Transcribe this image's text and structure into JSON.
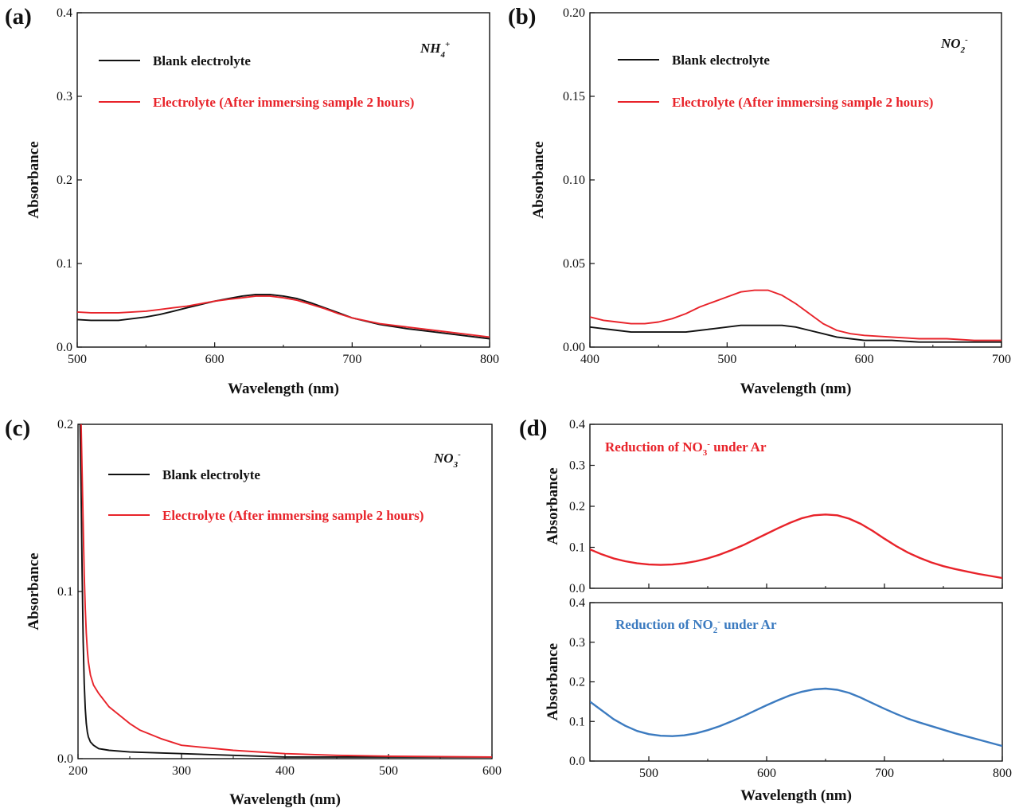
{
  "colors": {
    "black": "#111111",
    "red": "#e8232a",
    "blue": "#3c7bc0"
  },
  "chart_data": [
    {
      "id": "a",
      "type": "line",
      "panel_label": "(a)",
      "xlabel": "Wavelength (nm)",
      "ylabel": "Absorbance",
      "xlim": [
        500,
        800
      ],
      "ylim": [
        0,
        0.4
      ],
      "xticks": [
        500,
        600,
        700,
        800
      ],
      "xtick_labels": [
        "500",
        "600",
        "700",
        "800"
      ],
      "yticks": [
        0,
        0.1,
        0.2,
        0.3,
        0.4
      ],
      "ytick_labels": [
        "0.0",
        "0.1",
        "0.2",
        "0.3",
        "0.4"
      ],
      "annotation": {
        "base": "NH",
        "sub": "4",
        "sup": "+"
      },
      "series": [
        {
          "name": "Blank electrolyte",
          "color": "#111111",
          "x": [
            500,
            510,
            520,
            530,
            540,
            550,
            560,
            570,
            580,
            590,
            600,
            610,
            620,
            630,
            640,
            650,
            660,
            670,
            680,
            690,
            700,
            720,
            740,
            760,
            780,
            800
          ],
          "y": [
            0.033,
            0.032,
            0.032,
            0.032,
            0.034,
            0.036,
            0.039,
            0.043,
            0.047,
            0.051,
            0.055,
            0.058,
            0.061,
            0.063,
            0.063,
            0.061,
            0.058,
            0.053,
            0.047,
            0.041,
            0.035,
            0.027,
            0.022,
            0.018,
            0.014,
            0.01
          ]
        },
        {
          "name": "Electrolyte (After immersing sample 2 hours)",
          "color": "#e8232a",
          "x": [
            500,
            510,
            520,
            530,
            540,
            550,
            560,
            570,
            580,
            590,
            600,
            610,
            620,
            630,
            640,
            650,
            660,
            670,
            680,
            690,
            700,
            720,
            740,
            760,
            780,
            800
          ],
          "y": [
            0.042,
            0.041,
            0.041,
            0.041,
            0.042,
            0.043,
            0.045,
            0.047,
            0.049,
            0.052,
            0.055,
            0.057,
            0.059,
            0.061,
            0.061,
            0.059,
            0.056,
            0.051,
            0.046,
            0.04,
            0.035,
            0.028,
            0.024,
            0.02,
            0.016,
            0.012
          ]
        }
      ]
    },
    {
      "id": "b",
      "type": "line",
      "panel_label": "(b)",
      "xlabel": "Wavelength (nm)",
      "ylabel": "Absorbance",
      "xlim": [
        400,
        700
      ],
      "ylim": [
        0,
        0.2
      ],
      "xticks": [
        400,
        500,
        600,
        700
      ],
      "xtick_labels": [
        "400",
        "500",
        "600",
        "700"
      ],
      "yticks": [
        0,
        0.05,
        0.1,
        0.15,
        0.2
      ],
      "ytick_labels": [
        "0.00",
        "0.05",
        "0.10",
        "0.15",
        "0.20"
      ],
      "annotation": {
        "base": "NO",
        "sub": "2",
        "sup": "-"
      },
      "series": [
        {
          "name": "Blank electrolyte",
          "color": "#111111",
          "x": [
            400,
            410,
            420,
            430,
            440,
            450,
            460,
            470,
            480,
            490,
            500,
            510,
            520,
            530,
            540,
            550,
            560,
            570,
            580,
            590,
            600,
            620,
            640,
            660,
            680,
            700
          ],
          "y": [
            0.012,
            0.011,
            0.01,
            0.009,
            0.009,
            0.009,
            0.009,
            0.009,
            0.01,
            0.011,
            0.012,
            0.013,
            0.013,
            0.013,
            0.013,
            0.012,
            0.01,
            0.008,
            0.006,
            0.005,
            0.004,
            0.004,
            0.003,
            0.003,
            0.003,
            0.003
          ]
        },
        {
          "name": "Electrolyte (After immersing sample 2 hours)",
          "color": "#e8232a",
          "x": [
            400,
            410,
            420,
            430,
            440,
            450,
            460,
            470,
            480,
            490,
            500,
            510,
            520,
            530,
            540,
            550,
            560,
            570,
            580,
            590,
            600,
            620,
            640,
            660,
            680,
            700
          ],
          "y": [
            0.018,
            0.016,
            0.015,
            0.014,
            0.014,
            0.015,
            0.017,
            0.02,
            0.024,
            0.027,
            0.03,
            0.033,
            0.034,
            0.034,
            0.031,
            0.026,
            0.02,
            0.014,
            0.01,
            0.008,
            0.007,
            0.006,
            0.005,
            0.005,
            0.004,
            0.004
          ]
        }
      ]
    },
    {
      "id": "c",
      "type": "line",
      "panel_label": "(c)",
      "xlabel": "Wavelength (nm)",
      "ylabel": "Absorbance",
      "xlim": [
        200,
        600
      ],
      "ylim": [
        0,
        0.2
      ],
      "xticks": [
        200,
        300,
        400,
        500,
        600
      ],
      "xtick_labels": [
        "200",
        "300",
        "400",
        "500",
        "600"
      ],
      "yticks": [
        0,
        0.1,
        0.2
      ],
      "ytick_labels": [
        "0.0",
        "0.1",
        "0.2"
      ],
      "annotation": {
        "base": "NO",
        "sub": "3",
        "sup": "-"
      },
      "series": [
        {
          "name": "Blank electrolyte",
          "color": "#111111",
          "x": [
            202,
            203,
            204,
            205,
            206,
            207,
            208,
            209,
            210,
            212,
            215,
            220,
            230,
            250,
            300,
            350,
            400,
            500,
            600
          ],
          "y": [
            0.2,
            0.16,
            0.11,
            0.07,
            0.045,
            0.03,
            0.021,
            0.016,
            0.013,
            0.01,
            0.008,
            0.006,
            0.005,
            0.004,
            0.003,
            0.002,
            0.001,
            0.001,
            0.001
          ]
        },
        {
          "name": "Electrolyte (After immersing sample 2 hours)",
          "color": "#e8232a",
          "x": [
            203,
            204,
            205,
            206,
            207,
            208,
            209,
            210,
            212,
            215,
            220,
            230,
            240,
            250,
            260,
            280,
            300,
            350,
            400,
            450,
            500,
            600
          ],
          "y": [
            0.2,
            0.17,
            0.14,
            0.11,
            0.09,
            0.075,
            0.065,
            0.058,
            0.05,
            0.044,
            0.039,
            0.031,
            0.026,
            0.021,
            0.017,
            0.012,
            0.008,
            0.005,
            0.003,
            0.002,
            0.0015,
            0.001
          ]
        }
      ]
    },
    {
      "id": "d-top",
      "type": "line",
      "panel_label": "(d)",
      "xlabel": "",
      "ylabel": "Absorbance",
      "xlim": [
        450,
        800
      ],
      "ylim": [
        0,
        0.4
      ],
      "xticks": [
        500,
        600,
        700,
        800
      ],
      "xtick_labels": [],
      "yticks": [
        0,
        0.1,
        0.2,
        0.3,
        0.4
      ],
      "ytick_labels": [
        "0.0",
        "0.1",
        "0.2",
        "0.3",
        "0.4"
      ],
      "inline_label": {
        "text": "Reduction of NO",
        "sub": "3",
        "sup": "-",
        "rest": " under Ar",
        "color": "#e8232a"
      },
      "series": [
        {
          "name": "Reduction of NO3- under Ar",
          "color": "#e8232a",
          "x": [
            450,
            460,
            470,
            480,
            490,
            500,
            510,
            520,
            530,
            540,
            550,
            560,
            570,
            580,
            590,
            600,
            610,
            620,
            630,
            640,
            650,
            660,
            670,
            680,
            690,
            700,
            710,
            720,
            730,
            740,
            750,
            760,
            770,
            780,
            790,
            800
          ],
          "y": [
            0.095,
            0.083,
            0.073,
            0.066,
            0.061,
            0.058,
            0.057,
            0.058,
            0.061,
            0.066,
            0.073,
            0.082,
            0.093,
            0.105,
            0.119,
            0.133,
            0.147,
            0.16,
            0.171,
            0.178,
            0.18,
            0.178,
            0.17,
            0.157,
            0.14,
            0.121,
            0.103,
            0.087,
            0.074,
            0.063,
            0.054,
            0.047,
            0.041,
            0.035,
            0.03,
            0.025
          ]
        }
      ]
    },
    {
      "id": "d-bottom",
      "type": "line",
      "panel_label": "",
      "xlabel": "Wavelength (nm)",
      "ylabel": "Absorbance",
      "xlim": [
        450,
        800
      ],
      "ylim": [
        0,
        0.4
      ],
      "xticks": [
        500,
        600,
        700,
        800
      ],
      "xtick_labels": [
        "500",
        "600",
        "700",
        "800"
      ],
      "yticks": [
        0,
        0.1,
        0.2,
        0.3,
        0.4
      ],
      "ytick_labels": [
        "0.0",
        "0.1",
        "0.2",
        "0.3",
        "0.4"
      ],
      "inline_label": {
        "text": "Reduction of NO",
        "sub": "2",
        "sup": "-",
        "rest": " under Ar",
        "color": "#3c7bc0"
      },
      "series": [
        {
          "name": "Reduction of NO2- under Ar",
          "color": "#3c7bc0",
          "x": [
            450,
            460,
            470,
            480,
            490,
            500,
            510,
            520,
            530,
            540,
            550,
            560,
            570,
            580,
            590,
            600,
            610,
            620,
            630,
            640,
            650,
            660,
            670,
            680,
            690,
            700,
            710,
            720,
            730,
            740,
            750,
            760,
            770,
            780,
            790,
            800
          ],
          "y": [
            0.15,
            0.128,
            0.106,
            0.089,
            0.076,
            0.068,
            0.064,
            0.063,
            0.065,
            0.07,
            0.078,
            0.088,
            0.1,
            0.113,
            0.127,
            0.141,
            0.154,
            0.166,
            0.175,
            0.181,
            0.183,
            0.18,
            0.172,
            0.16,
            0.146,
            0.132,
            0.119,
            0.107,
            0.097,
            0.088,
            0.079,
            0.07,
            0.062,
            0.054,
            0.046,
            0.038
          ]
        }
      ]
    }
  ]
}
